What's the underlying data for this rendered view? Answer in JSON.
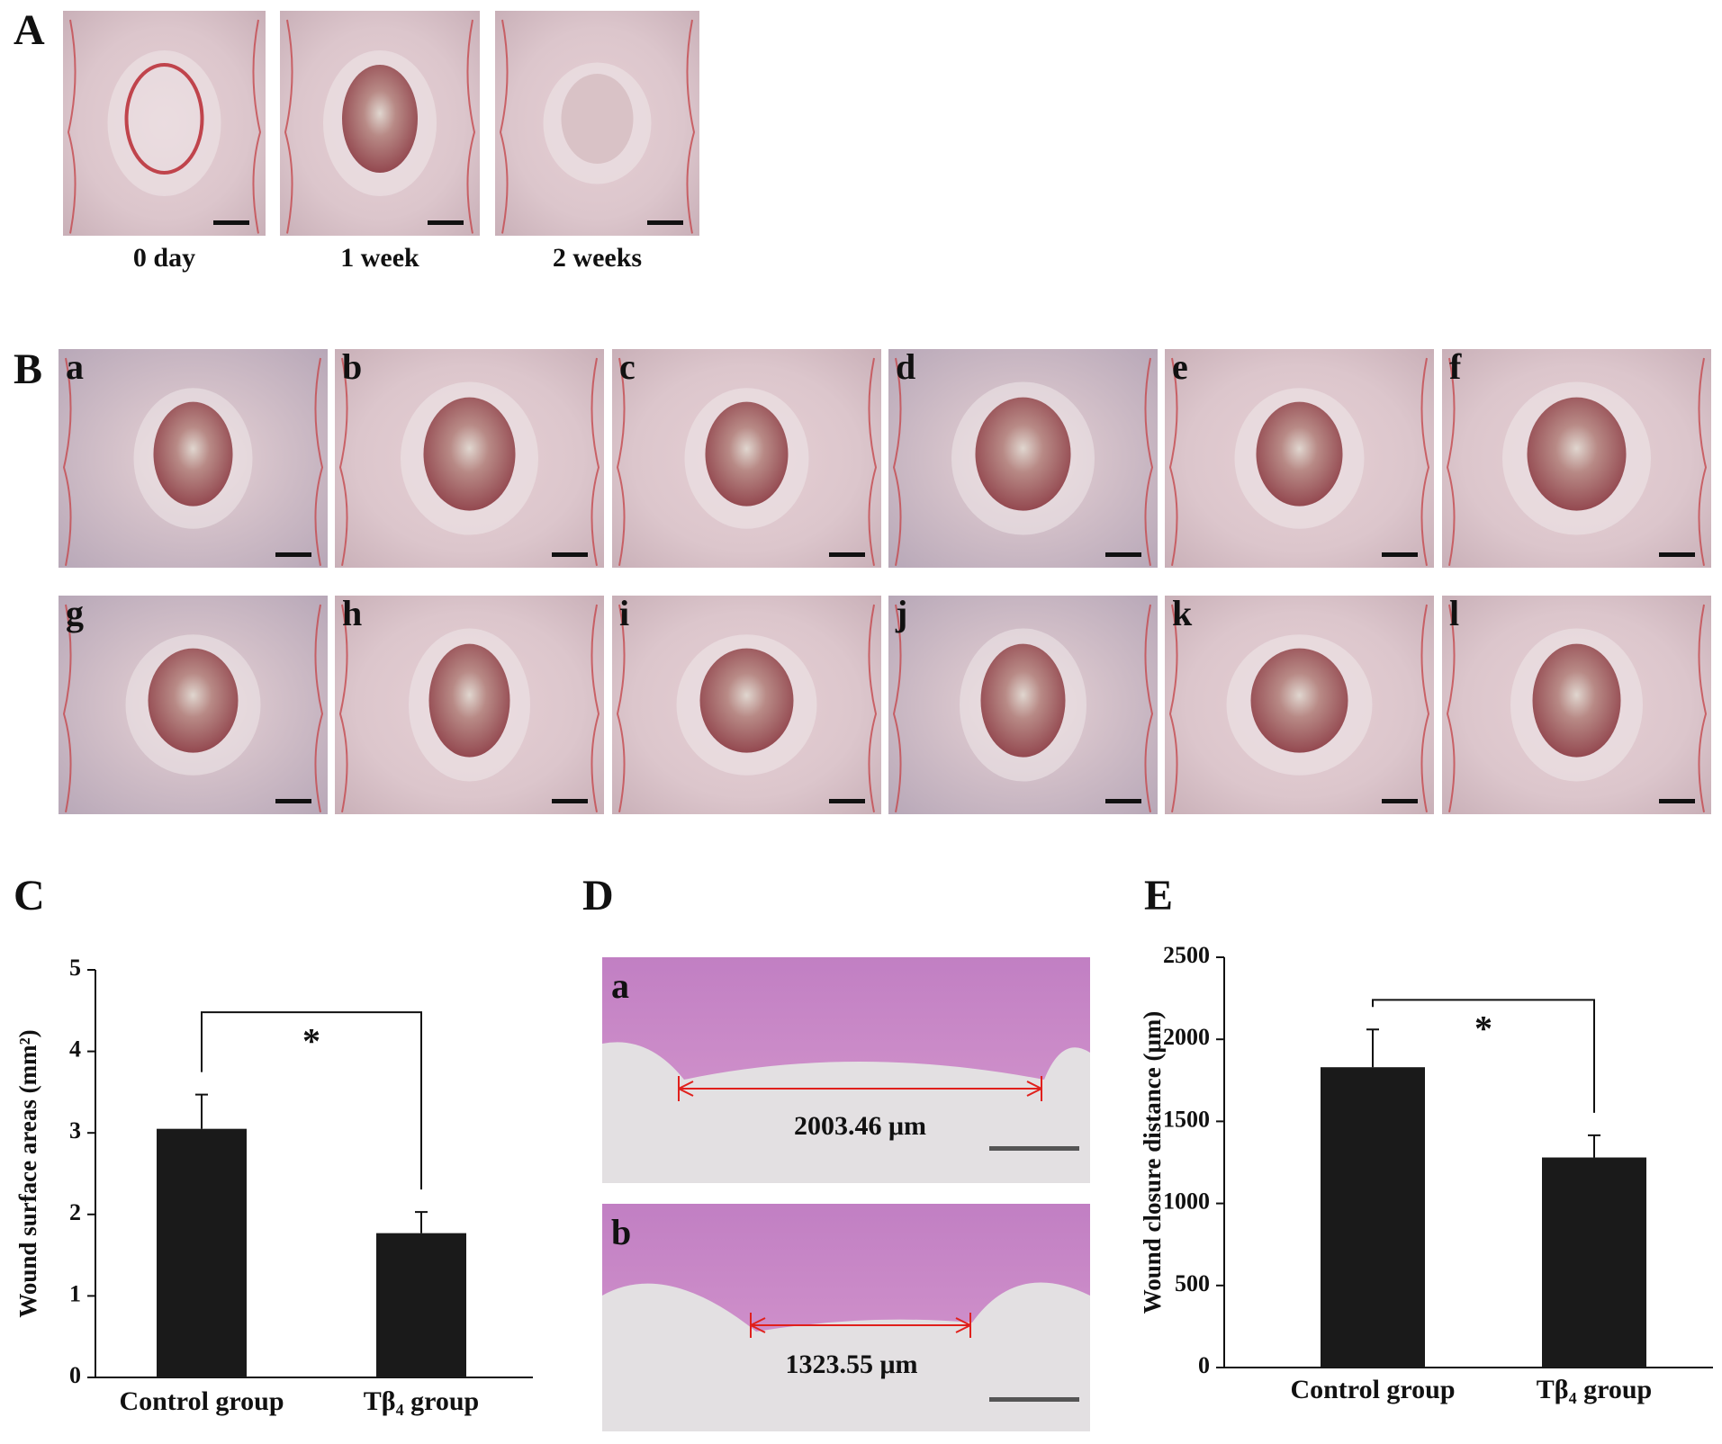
{
  "panel_labels": [
    "A",
    "B",
    "C",
    "D",
    "E"
  ],
  "panel_a": {
    "captions": [
      "0  day",
      "1  week",
      "2  weeks"
    ]
  },
  "panel_b": {
    "letters": [
      "a",
      "b",
      "c",
      "d",
      "e",
      "f",
      "g",
      "h",
      "i",
      "j",
      "k",
      "l"
    ]
  },
  "panel_d": {
    "letters": [
      "a",
      "b"
    ],
    "measurements": [
      "2003.46 μm",
      "1323.55 μm"
    ]
  },
  "chart_data": [
    {
      "type": "bar",
      "ylabel": "Wound surface areas (mm²)",
      "categories": [
        "Control group",
        "Tβ₄ group"
      ],
      "values": [
        3.05,
        1.77
      ],
      "errors": [
        0.42,
        0.26
      ],
      "color": "#1a1a1a",
      "ylim": [
        0,
        5
      ],
      "yticks": [
        0,
        1,
        2,
        3,
        4,
        5
      ],
      "significance": "*"
    },
    {
      "type": "bar",
      "ylabel": "Wound closure distance (μm)",
      "categories": [
        "Control group",
        "Tβ₄ group"
      ],
      "values": [
        1830,
        1280
      ],
      "errors": [
        230,
        135
      ],
      "color": "#1a1a1a",
      "ylim": [
        0,
        2500
      ],
      "yticks": [
        0,
        500,
        1000,
        1500,
        2000,
        2500
      ],
      "significance": "*"
    }
  ]
}
